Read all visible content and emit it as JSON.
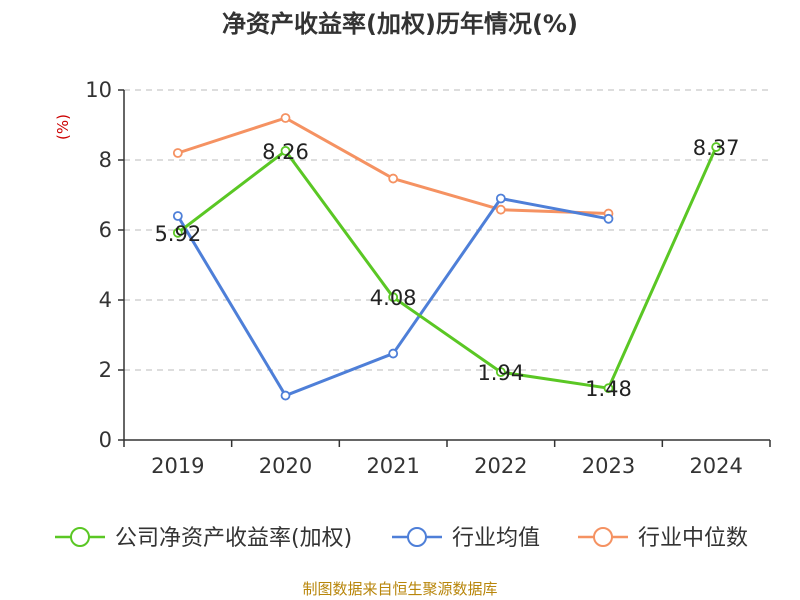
{
  "chart_data": {
    "type": "line",
    "title": "净资产收益率(加权)历年情况(%)",
    "ylabel": "(%)",
    "xlabel": "",
    "categories": [
      "2019",
      "2020",
      "2021",
      "2022",
      "2023",
      "2024"
    ],
    "ylim": [
      0,
      10
    ],
    "yticks": [
      0,
      2,
      4,
      6,
      8,
      10
    ],
    "grid": true,
    "legend_position": "bottom",
    "series": [
      {
        "name": "公司净资产收益率(加权)",
        "color": "#5ac724",
        "values": [
          5.92,
          8.26,
          4.08,
          1.94,
          1.48,
          8.37
        ],
        "labels": [
          "5.92",
          "8.26",
          "4.08",
          "1.94",
          "1.48",
          "8.37"
        ]
      },
      {
        "name": "行业均值",
        "color": "#4e7fd8",
        "values": [
          6.4,
          1.27,
          2.47,
          6.9,
          6.32,
          null
        ]
      },
      {
        "name": "行业中位数",
        "color": "#f59262",
        "values": [
          8.2,
          9.2,
          7.47,
          6.58,
          6.47,
          null
        ]
      }
    ]
  },
  "source": "制图数据来自恒生聚源数据库"
}
